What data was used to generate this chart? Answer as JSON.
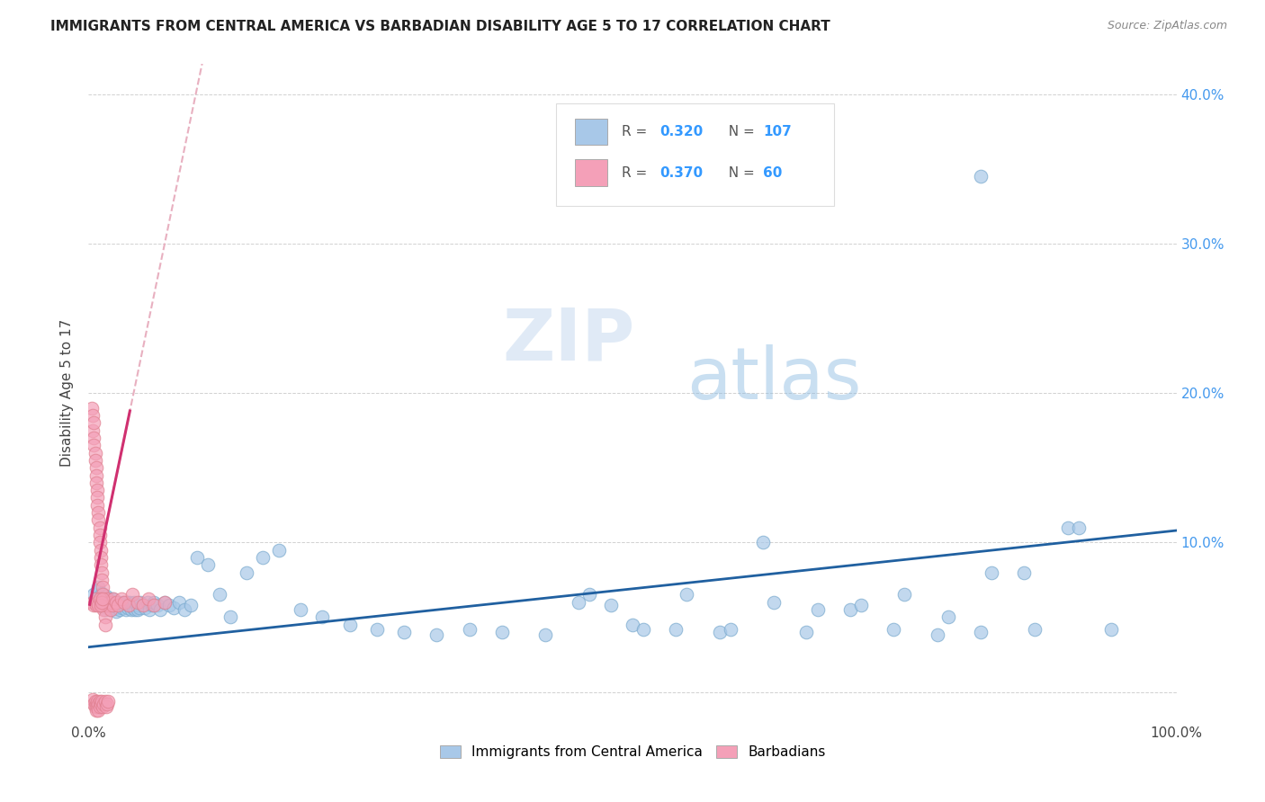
{
  "title": "IMMIGRANTS FROM CENTRAL AMERICA VS BARBADIAN DISABILITY AGE 5 TO 17 CORRELATION CHART",
  "source": "Source: ZipAtlas.com",
  "ylabel": "Disability Age 5 to 17",
  "xlim": [
    0.0,
    1.0
  ],
  "ylim": [
    -0.02,
    0.42
  ],
  "yticks": [
    0.0,
    0.1,
    0.2,
    0.3,
    0.4
  ],
  "ytick_labels": [
    "",
    "10.0%",
    "20.0%",
    "30.0%",
    "40.0%"
  ],
  "xticks": [
    0.0,
    0.1,
    0.2,
    0.3,
    0.4,
    0.5,
    0.6,
    0.7,
    0.8,
    0.9,
    1.0
  ],
  "xtick_labels": [
    "0.0%",
    "",
    "",
    "",
    "",
    "",
    "",
    "",
    "",
    "",
    "100.0%"
  ],
  "legend_labels": [
    "Immigrants from Central America",
    "Barbadians"
  ],
  "R_blue": 0.32,
  "N_blue": 107,
  "R_pink": 0.37,
  "N_pink": 60,
  "blue_color": "#a8c8e8",
  "pink_color": "#f4a0b8",
  "blue_line_color": "#2060a0",
  "pink_line_color": "#d03070",
  "pink_dashed_color": "#e8b0c0",
  "watermark_zip": "ZIP",
  "watermark_atlas": "atlas",
  "blue_scatter_x": [
    0.005,
    0.007,
    0.008,
    0.009,
    0.01,
    0.01,
    0.011,
    0.012,
    0.013,
    0.014,
    0.015,
    0.015,
    0.016,
    0.016,
    0.017,
    0.018,
    0.018,
    0.019,
    0.02,
    0.02,
    0.021,
    0.022,
    0.022,
    0.023,
    0.024,
    0.025,
    0.025,
    0.026,
    0.027,
    0.028,
    0.029,
    0.03,
    0.031,
    0.032,
    0.033,
    0.034,
    0.035,
    0.036,
    0.037,
    0.038,
    0.039,
    0.04,
    0.041,
    0.042,
    0.043,
    0.044,
    0.045,
    0.046,
    0.047,
    0.048,
    0.05,
    0.052,
    0.054,
    0.056,
    0.058,
    0.06,
    0.063,
    0.066,
    0.07,
    0.074,
    0.078,
    0.083,
    0.088,
    0.094,
    0.1,
    0.11,
    0.12,
    0.13,
    0.145,
    0.16,
    0.175,
    0.195,
    0.215,
    0.24,
    0.265,
    0.29,
    0.32,
    0.35,
    0.38,
    0.42,
    0.46,
    0.5,
    0.54,
    0.58,
    0.62,
    0.66,
    0.7,
    0.74,
    0.78,
    0.82,
    0.86,
    0.9,
    0.94,
    0.45,
    0.48,
    0.51,
    0.55,
    0.59,
    0.63,
    0.67,
    0.71,
    0.75,
    0.79,
    0.83,
    0.87,
    0.91,
    0.82
  ],
  "blue_scatter_y": [
    0.065,
    0.062,
    0.068,
    0.07,
    0.06,
    0.058,
    0.064,
    0.066,
    0.058,
    0.062,
    0.055,
    0.06,
    0.058,
    0.064,
    0.056,
    0.06,
    0.058,
    0.062,
    0.055,
    0.058,
    0.06,
    0.056,
    0.062,
    0.058,
    0.056,
    0.06,
    0.054,
    0.058,
    0.056,
    0.06,
    0.055,
    0.058,
    0.056,
    0.06,
    0.058,
    0.055,
    0.06,
    0.056,
    0.058,
    0.06,
    0.055,
    0.058,
    0.056,
    0.06,
    0.055,
    0.058,
    0.055,
    0.058,
    0.056,
    0.06,
    0.058,
    0.056,
    0.06,
    0.055,
    0.058,
    0.06,
    0.058,
    0.055,
    0.06,
    0.058,
    0.056,
    0.06,
    0.055,
    0.058,
    0.09,
    0.085,
    0.065,
    0.05,
    0.08,
    0.09,
    0.095,
    0.055,
    0.05,
    0.045,
    0.042,
    0.04,
    0.038,
    0.042,
    0.04,
    0.038,
    0.065,
    0.045,
    0.042,
    0.04,
    0.1,
    0.04,
    0.055,
    0.042,
    0.038,
    0.04,
    0.08,
    0.11,
    0.042,
    0.06,
    0.058,
    0.042,
    0.065,
    0.042,
    0.06,
    0.055,
    0.058,
    0.065,
    0.05,
    0.08,
    0.042,
    0.11,
    0.345
  ],
  "pink_scatter_x": [
    0.003,
    0.004,
    0.004,
    0.005,
    0.005,
    0.005,
    0.006,
    0.006,
    0.007,
    0.007,
    0.007,
    0.008,
    0.008,
    0.008,
    0.009,
    0.009,
    0.01,
    0.01,
    0.01,
    0.011,
    0.011,
    0.011,
    0.012,
    0.012,
    0.013,
    0.013,
    0.014,
    0.014,
    0.015,
    0.015,
    0.016,
    0.016,
    0.017,
    0.018,
    0.019,
    0.02,
    0.021,
    0.022,
    0.023,
    0.025,
    0.027,
    0.03,
    0.033,
    0.037,
    0.04,
    0.045,
    0.05,
    0.055,
    0.06,
    0.07,
    0.004,
    0.005,
    0.006,
    0.007,
    0.008,
    0.009,
    0.01,
    0.011,
    0.012,
    0.013
  ],
  "pink_scatter_y": [
    0.19,
    0.175,
    0.185,
    0.17,
    0.165,
    0.18,
    0.16,
    0.155,
    0.15,
    0.145,
    0.14,
    0.135,
    0.13,
    0.125,
    0.12,
    0.115,
    0.11,
    0.105,
    0.1,
    0.095,
    0.09,
    0.085,
    0.08,
    0.075,
    0.07,
    0.065,
    0.06,
    0.055,
    0.05,
    0.045,
    0.06,
    0.058,
    0.062,
    0.06,
    0.058,
    0.055,
    0.06,
    0.058,
    0.062,
    0.06,
    0.058,
    0.062,
    0.06,
    0.058,
    0.065,
    0.06,
    0.058,
    0.062,
    0.058,
    0.06,
    0.06,
    0.058,
    0.062,
    0.058,
    0.06,
    0.058,
    0.062,
    0.058,
    0.06,
    0.062
  ],
  "pink_below_x": [
    0.004,
    0.005,
    0.006,
    0.006,
    0.007,
    0.007,
    0.008,
    0.008,
    0.009,
    0.009,
    0.01,
    0.01,
    0.011,
    0.012,
    0.013,
    0.014,
    0.015,
    0.016,
    0.017,
    0.018
  ],
  "pink_below_y": [
    -0.005,
    -0.008,
    -0.006,
    -0.01,
    -0.008,
    -0.012,
    -0.006,
    -0.01,
    -0.008,
    -0.012,
    -0.006,
    -0.01,
    -0.008,
    -0.006,
    -0.01,
    -0.008,
    -0.006,
    -0.01,
    -0.008,
    -0.006
  ]
}
